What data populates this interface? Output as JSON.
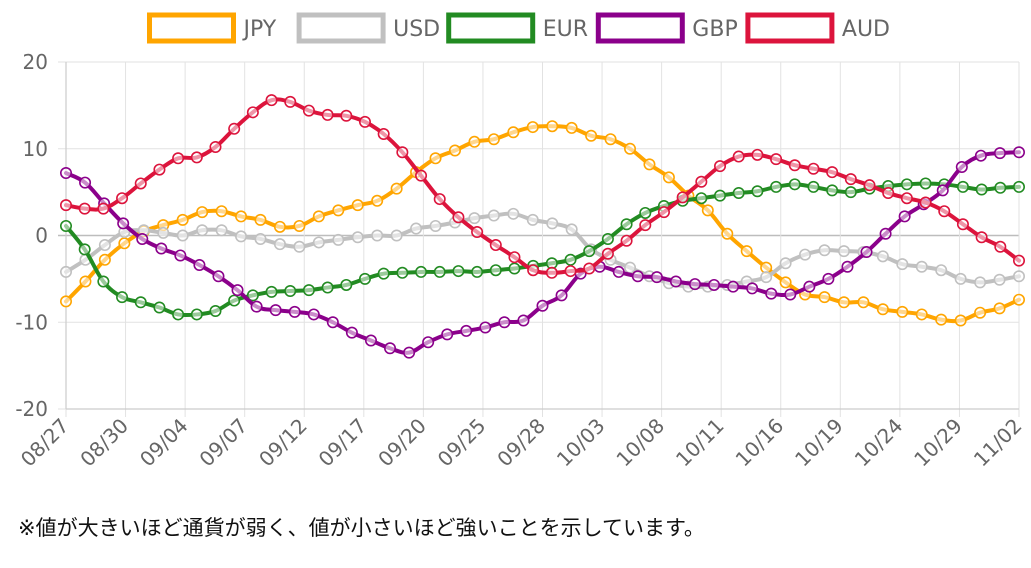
{
  "note": "※値が大きいほど通貨が弱く、値が小さいほど強いことを示しています。",
  "chart_data": {
    "type": "line",
    "title": "",
    "xlabel": "",
    "ylabel": "",
    "ylim": [
      -20,
      20
    ],
    "yticks": [
      20,
      10,
      0,
      -10,
      -20
    ],
    "grid": true,
    "legend_position": "top",
    "x_tick_labels": [
      "08/27",
      "08/30",
      "09/04",
      "09/07",
      "09/12",
      "09/17",
      "09/20",
      "09/25",
      "09/28",
      "10/03",
      "10/08",
      "10/11",
      "10/16",
      "10/19",
      "10/24",
      "10/29",
      "11/02"
    ],
    "series": [
      {
        "name": "JPY",
        "color": "#FFA500",
        "values": [
          -7.6,
          -5.3,
          -2.8,
          -0.9,
          0.5,
          1.2,
          1.8,
          2.7,
          2.8,
          2.2,
          1.8,
          1.0,
          1.1,
          2.2,
          2.9,
          3.5,
          4.0,
          5.4,
          7.3,
          8.9,
          9.8,
          10.8,
          11.1,
          11.9,
          12.5,
          12.6,
          12.4,
          11.5,
          11.1,
          10.0,
          8.2,
          6.7,
          4.6,
          2.9,
          0.2,
          -1.8,
          -3.7,
          -5.4,
          -6.8,
          -7.1,
          -7.7,
          -7.7,
          -8.5,
          -8.8,
          -9.1,
          -9.7,
          -9.8,
          -8.9,
          -8.4,
          -7.4
        ]
      },
      {
        "name": "USD",
        "color": "#C0C0C0",
        "values": [
          -4.2,
          -2.8,
          -1.1,
          0.4,
          0.6,
          0.3,
          0.0,
          0.6,
          0.6,
          -0.1,
          -0.4,
          -1.0,
          -1.3,
          -0.8,
          -0.5,
          -0.2,
          0.0,
          0.0,
          0.8,
          1.1,
          1.5,
          2.0,
          2.3,
          2.5,
          1.8,
          1.4,
          0.7,
          -1.6,
          -2.8,
          -3.7,
          -4.7,
          -5.5,
          -5.9,
          -5.9,
          -5.7,
          -5.3,
          -4.8,
          -3.2,
          -2.2,
          -1.7,
          -1.8,
          -1.9,
          -2.4,
          -3.3,
          -3.6,
          -4.0,
          -5.0,
          -5.4,
          -5.1,
          -4.7
        ]
      },
      {
        "name": "EUR",
        "color": "#228B22",
        "values": [
          1.1,
          -1.6,
          -5.3,
          -7.1,
          -7.7,
          -8.3,
          -9.1,
          -9.1,
          -8.7,
          -7.5,
          -6.9,
          -6.5,
          -6.4,
          -6.3,
          -6.0,
          -5.7,
          -5.0,
          -4.4,
          -4.3,
          -4.2,
          -4.2,
          -4.1,
          -4.2,
          -4.0,
          -3.8,
          -3.5,
          -3.2,
          -2.8,
          -1.8,
          -0.4,
          1.3,
          2.6,
          3.4,
          4.0,
          4.3,
          4.6,
          4.9,
          5.1,
          5.6,
          5.9,
          5.6,
          5.2,
          5.0,
          5.4,
          5.7,
          5.9,
          6.0,
          5.9,
          5.6,
          5.3,
          5.5,
          5.6
        ]
      },
      {
        "name": "GBP",
        "color": "#8B008B",
        "values": [
          7.2,
          6.1,
          3.7,
          1.4,
          -0.4,
          -1.5,
          -2.3,
          -3.4,
          -4.7,
          -6.3,
          -8.2,
          -8.6,
          -8.8,
          -9.1,
          -10.0,
          -11.2,
          -12.1,
          -13.0,
          -13.5,
          -12.3,
          -11.4,
          -11.0,
          -10.6,
          -10.0,
          -9.8,
          -8.1,
          -6.9,
          -4.4,
          -3.6,
          -4.2,
          -4.7,
          -4.8,
          -5.3,
          -5.6,
          -5.7,
          -5.9,
          -6.1,
          -6.7,
          -6.8,
          -5.9,
          -5.0,
          -3.6,
          -1.9,
          0.2,
          2.2,
          3.6,
          5.2,
          7.9,
          9.2,
          9.5,
          9.6
        ]
      },
      {
        "name": "AUD",
        "color": "#DC143C",
        "values": [
          3.5,
          3.1,
          3.1,
          4.3,
          6.0,
          7.6,
          8.9,
          9.0,
          10.2,
          12.3,
          14.2,
          15.6,
          15.4,
          14.4,
          13.9,
          13.8,
          13.1,
          11.7,
          9.6,
          6.9,
          4.2,
          2.1,
          0.4,
          -1.1,
          -2.5,
          -4.0,
          -4.3,
          -4.1,
          -3.8,
          -2.1,
          -0.6,
          1.2,
          2.7,
          4.4,
          6.2,
          8.0,
          9.1,
          9.3,
          8.8,
          8.1,
          7.7,
          7.3,
          6.5,
          5.8,
          4.9,
          4.3,
          3.8,
          2.8,
          1.3,
          -0.2,
          -1.3,
          -2.9
        ]
      }
    ]
  }
}
